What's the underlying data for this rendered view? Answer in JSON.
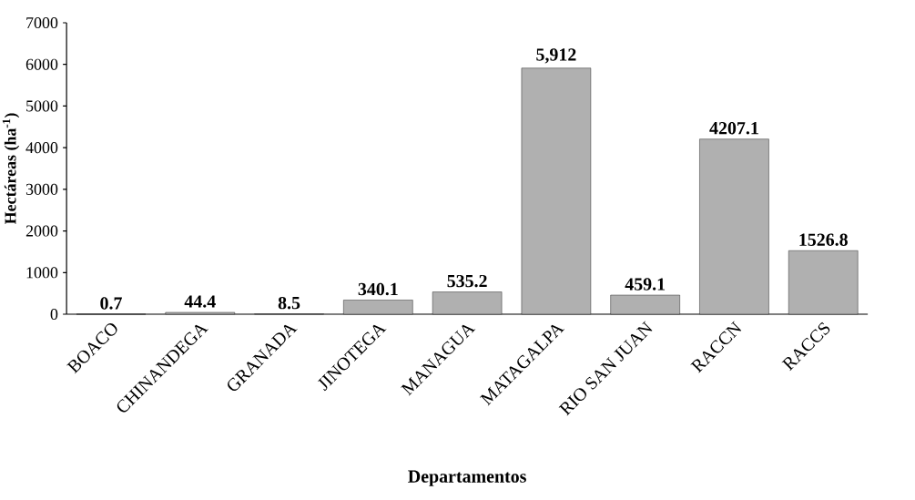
{
  "chart_data": {
    "type": "bar",
    "xlabel": "Departamentos",
    "ylabel": "Hectáreas (ha$^{-1}$)",
    "categories": [
      "BOACO",
      "CHINANDEGA",
      "GRANADA",
      "JINOTEGA",
      "MANAGUA",
      "MATAGALPA",
      "RIO SAN JUAN",
      "RACCN",
      "RACCS"
    ],
    "values": [
      0.7,
      44.4,
      8.5,
      340.1,
      535.2,
      5912,
      459.1,
      4207.1,
      1526.8
    ],
    "value_labels": [
      "0.7",
      "44.4",
      "8.5",
      "340.1",
      "535.2",
      "5,912",
      "459.1",
      "4207.1",
      "1526.8"
    ],
    "color": "#b0b0b0",
    "ylim": [
      0,
      7000
    ],
    "yticks": [
      0,
      1000,
      2000,
      3000,
      4000,
      5000,
      6000,
      7000
    ]
  }
}
